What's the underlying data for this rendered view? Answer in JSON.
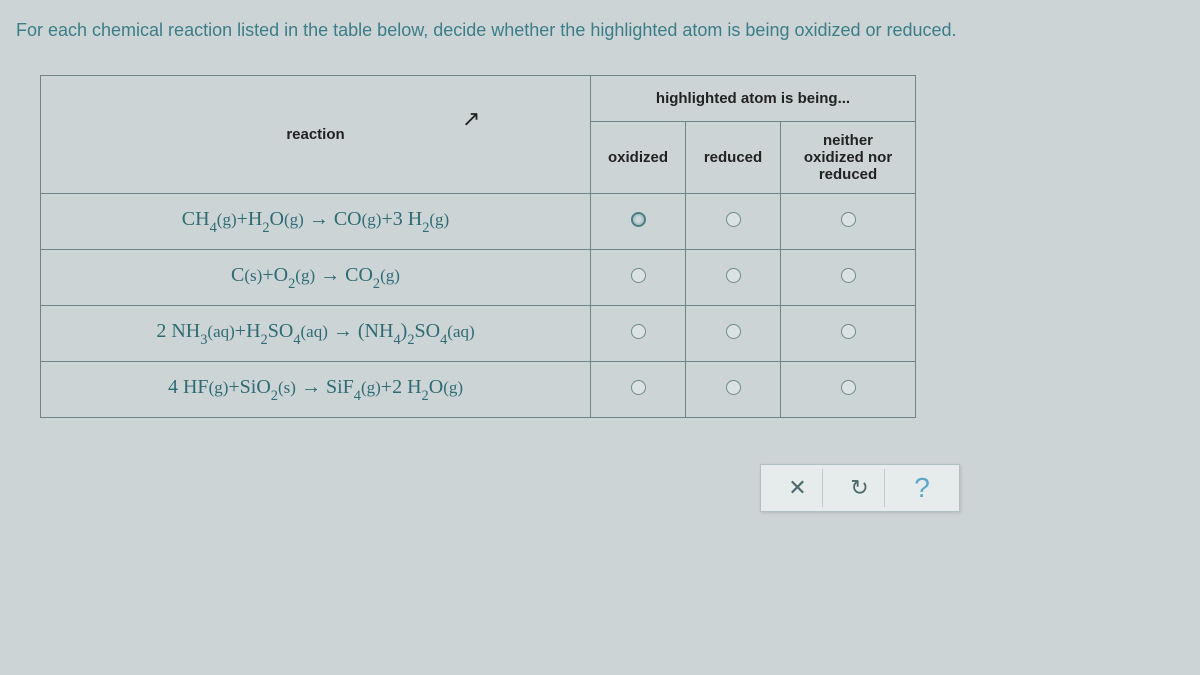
{
  "instruction": "For each chemical reaction listed in the table below, decide whether the highlighted atom is being oxidized or reduced.",
  "headers": {
    "reaction": "reaction",
    "group": "highlighted atom is being...",
    "oxidized": "oxidized",
    "reduced": "reduced",
    "neither": "neither oxidized nor reduced"
  },
  "reactions": [
    {
      "formula_html": "CH<span class='sub'>4</span><span class='state'>(g)</span>+H<span class='sub'>2</span>O<span class='state'>(g)</span> &rarr; CO<span class='state'>(g)</span>+3 H<span class='sub'>2</span><span class='state'>(g)</span>",
      "selected": 0
    },
    {
      "formula_html": "C<span class='state'>(s)</span>+O<span class='sub'>2</span><span class='state'>(g)</span> &rarr; CO<span class='sub'>2</span><span class='state'>(g)</span>",
      "selected": -1
    },
    {
      "formula_html": "2 NH<span class='sub'>3</span><span class='state'>(aq)</span>+H<span class='sub'>2</span>SO<span class='sub'>4</span><span class='state'>(aq)</span> &rarr; (NH<span class='sub'>4</span>)<span class='sub'>2</span>SO<span class='sub'>4</span><span class='state'>(aq)</span>",
      "selected": -1
    },
    {
      "formula_html": "4 HF<span class='state'>(g)</span>+SiO<span class='sub'>2</span><span class='state'>(s)</span> &rarr; SiF<span class='sub'>4</span><span class='state'>(g)</span>+2 H<span class='sub'>2</span>O<span class='state'>(g)</span>",
      "selected": -1
    }
  ],
  "buttons": {
    "close": "✕",
    "reset": "↻",
    "help": "?"
  }
}
